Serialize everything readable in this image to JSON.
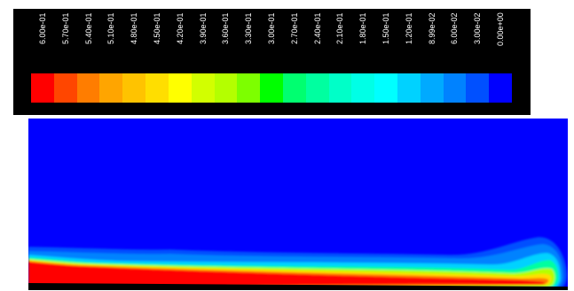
{
  "colorbar": {
    "labels": [
      "6.00e-01",
      "5.70e-01",
      "5.40e-01",
      "5.10e-01",
      "4.80e-01",
      "4.50e-01",
      "4.20e-01",
      "3.90e-01",
      "3.60e-01",
      "3.30e-01",
      "3.00e-01",
      "2.70e-01",
      "2.40e-01",
      "2.10e-01",
      "1.80e-01",
      "1.50e-01",
      "1.20e-01",
      "8.99e-02",
      "6.00e-02",
      "3.00e-02",
      "0.00e+00"
    ],
    "colors": [
      "#ff0000",
      "#ff4600",
      "#ff7d00",
      "#ffa500",
      "#ffc300",
      "#ffde00",
      "#ffff00",
      "#d2ff00",
      "#b4ff00",
      "#7dff00",
      "#00ff00",
      "#00ff70",
      "#00ffa0",
      "#00ffc8",
      "#00ffe6",
      "#00ffff",
      "#00d2ff",
      "#00aaff",
      "#0082ff",
      "#0050ff",
      "#0000ff"
    ]
  },
  "plot": {
    "background_color": "#0000ff"
  }
}
